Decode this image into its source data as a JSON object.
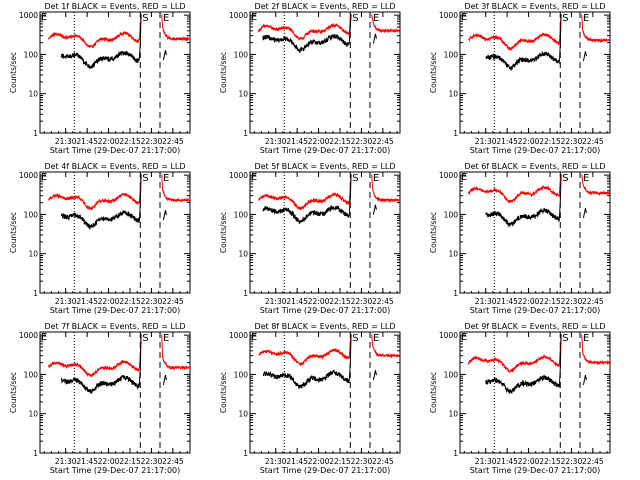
{
  "chart_data": [
    {
      "type": "line",
      "title": "Det 1f BLACK = Events, RED = LLD",
      "events_level": 80,
      "lld_level": 250,
      "events_start": 21.45,
      "event_flag": "S",
      "lld_flag": "E"
    },
    {
      "type": "line",
      "title": "Det 2f BLACK = Events, RED = LLD",
      "events_level": 210,
      "lld_level": 400,
      "events_start": 21.35,
      "event_flag": "S",
      "lld_flag": "E"
    },
    {
      "type": "line",
      "title": "Det 3f BLACK = Events, RED = LLD",
      "events_level": 75,
      "lld_level": 230,
      "events_start": 21.5,
      "event_flag": "S",
      "lld_flag": "E"
    },
    {
      "type": "line",
      "title": "Det 4f BLACK = Events, RED = LLD",
      "events_level": 80,
      "lld_level": 230,
      "events_start": 21.45,
      "event_flag": "S",
      "lld_flag": "E"
    },
    {
      "type": "line",
      "title": "Det 5f BLACK = Events, RED = LLD",
      "events_level": 110,
      "lld_level": 230,
      "events_start": 21.35,
      "event_flag": "S",
      "lld_flag": "E"
    },
    {
      "type": "line",
      "title": "Det 6f BLACK = Events, RED = LLD",
      "events_level": 90,
      "lld_level": 350,
      "events_start": 21.5,
      "event_flag": "S",
      "lld_flag": "E"
    },
    {
      "type": "line",
      "title": "Det 7f BLACK = Events, RED = LLD",
      "events_level": 60,
      "lld_level": 150,
      "events_start": 21.45,
      "event_flag": "S",
      "lld_flag": "E"
    },
    {
      "type": "line",
      "title": "Det 8f BLACK = Events, RED = LLD",
      "events_level": 80,
      "lld_level": 300,
      "events_start": 21.35,
      "event_flag": "S",
      "lld_flag": "E"
    },
    {
      "type": "line",
      "title": "Det 9f BLACK = Events, RED = LLD",
      "events_level": 60,
      "lld_level": 200,
      "events_start": 21.5,
      "event_flag": "S",
      "lld_flag": "E"
    }
  ],
  "shared": {
    "x_ticks": [
      "21:30",
      "21:45",
      "22:00",
      "22:15",
      "22:30",
      "22:45"
    ],
    "y_ticks": [
      "1",
      "10",
      "100",
      "1000"
    ],
    "xlabel": "Start Time (29-Dec-07 21:17:00)",
    "ylabel": "Counts/sec",
    "series": [
      {
        "name": "Events",
        "color": "#000000"
      },
      {
        "name": "LLD",
        "color": "#ff0000"
      }
    ],
    "xlim_hours": [
      21.2,
      22.95
    ],
    "ylim": [
      1,
      1000
    ],
    "scale": "log",
    "saa_exit": 21.6,
    "saa_entry": 22.37,
    "night_end": 22.6
  }
}
